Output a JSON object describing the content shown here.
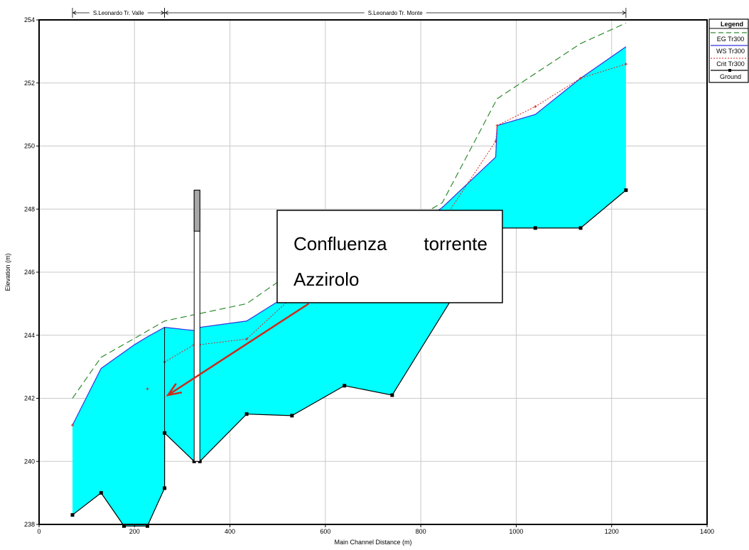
{
  "chart_data": {
    "type": "line",
    "xlabel": "Main Channel Distance (m)",
    "ylabel": "Elevation (m)",
    "xlim": [
      0,
      1400
    ],
    "ylim": [
      238,
      254
    ],
    "x_ticks": [
      "0",
      "200",
      "400",
      "600",
      "800",
      "1000",
      "1200",
      "1400"
    ],
    "y_ticks": [
      "238",
      "240",
      "242",
      "244",
      "246",
      "248",
      "250",
      "252",
      "254"
    ],
    "grid": true,
    "legend_title": "Legend",
    "legend_position": "top-right outside",
    "reaches": [
      {
        "label": "S.Leonardo Tr. Valle",
        "x_start": 70,
        "x_end": 263
      },
      {
        "label": "S.Leonardo Tr. Monte",
        "x_start": 263,
        "x_end": 1230
      }
    ],
    "series": [
      {
        "name": "EG  Tr300",
        "style": "long-dash",
        "color": "#2e8b2e",
        "points": [
          [
            70,
            242.0
          ],
          [
            130,
            243.3
          ],
          [
            200,
            243.9
          ],
          [
            263,
            244.45
          ],
          [
            325,
            244.65
          ],
          [
            435,
            245.0
          ],
          [
            530,
            246.0
          ],
          [
            640,
            247.0
          ],
          [
            740,
            247.3
          ],
          [
            845,
            248.2
          ],
          [
            960,
            251.5
          ],
          [
            1040,
            252.3
          ],
          [
            1135,
            253.25
          ],
          [
            1230,
            253.9
          ]
        ]
      },
      {
        "name": "WS  Tr300",
        "style": "solid",
        "color": "#3333dd",
        "points": [
          [
            70,
            241.15
          ],
          [
            130,
            242.95
          ],
          [
            200,
            243.7
          ],
          [
            227,
            243.95
          ],
          [
            263,
            244.25
          ],
          [
            325,
            244.15
          ],
          [
            337,
            244.25
          ],
          [
            435,
            244.45
          ],
          [
            530,
            245.35
          ],
          [
            640,
            246.4
          ],
          [
            740,
            246.85
          ],
          [
            845,
            248.05
          ],
          [
            957,
            249.65
          ],
          [
            960,
            250.65
          ],
          [
            1040,
            251.0
          ],
          [
            1135,
            252.15
          ],
          [
            1230,
            253.15
          ]
        ]
      },
      {
        "name": "Crit  Tr300",
        "style": "dotted",
        "color": "#dd2222",
        "points": [
          [
            263,
            243.15
          ],
          [
            325,
            243.7
          ],
          [
            337,
            243.7
          ],
          [
            435,
            243.88
          ],
          [
            530,
            245.2
          ],
          [
            845,
            247.6
          ],
          [
            957,
            250.15
          ],
          [
            960,
            250.65
          ],
          [
            1040,
            251.25
          ],
          [
            1135,
            252.15
          ],
          [
            1230,
            252.6
          ]
        ],
        "extra_points": [
          [
            70,
            241.15
          ],
          [
            227,
            242.3
          ]
        ]
      },
      {
        "name": "Ground",
        "style": "solid-markers",
        "color": "#000000",
        "points": [
          [
            70,
            238.3
          ],
          [
            130,
            239.0
          ],
          [
            178,
            237.95
          ],
          [
            227,
            237.95
          ],
          [
            263,
            239.15
          ],
          [
            263,
            240.9
          ],
          [
            325,
            240.0
          ],
          [
            337,
            240.0
          ],
          [
            435,
            241.5
          ],
          [
            530,
            241.45
          ],
          [
            640,
            242.4
          ],
          [
            740,
            242.1
          ],
          [
            957,
            247.4
          ],
          [
            1040,
            247.4
          ],
          [
            1135,
            247.4
          ],
          [
            1230,
            248.6
          ]
        ]
      }
    ],
    "bridge": {
      "x_left": 325,
      "x_right": 337,
      "deck_top": 248.6,
      "deck_bottom": 247.3,
      "bottom": 240.0
    },
    "annotation": {
      "lines": [
        "Confluenza",
        "torrente",
        "Azzirolo"
      ],
      "arrow_from": [
        565,
        245.0
      ],
      "arrow_to": [
        270,
        242.1
      ]
    }
  }
}
